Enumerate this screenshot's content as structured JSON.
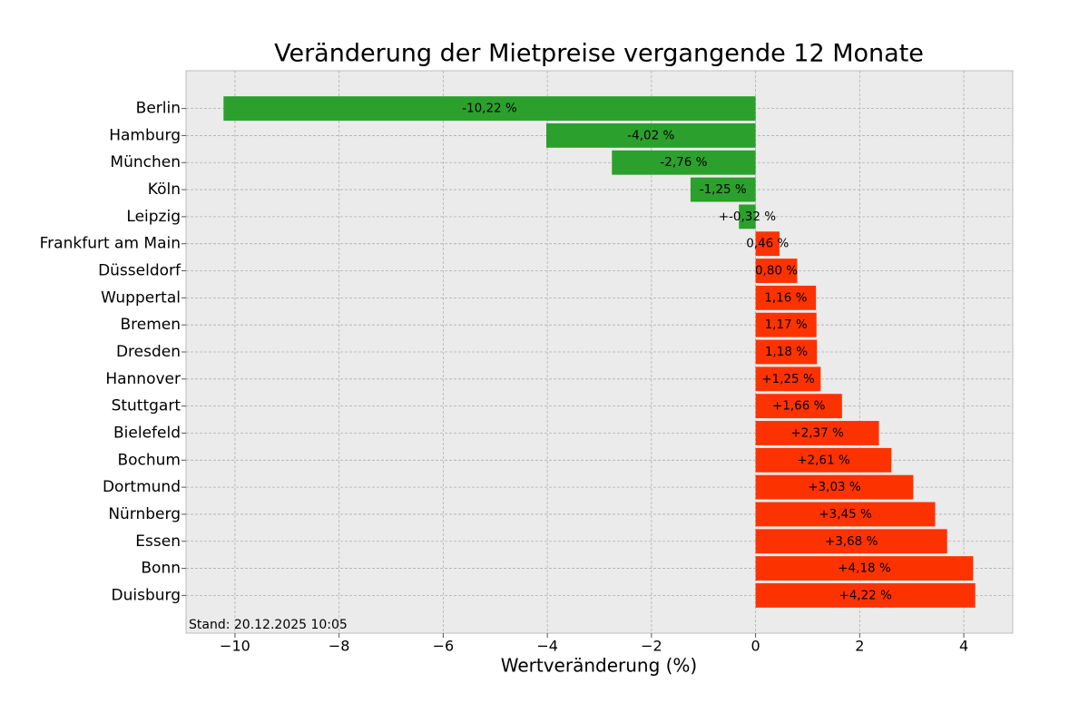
{
  "chart_data": {
    "type": "barh",
    "title": "Veränderung der Mietpreise vergangende 12 Monate",
    "xlabel": "Wertveränderung (%)",
    "annotation": "Stand: 20.12.2025 10:05",
    "categories": [
      "Berlin",
      "Hamburg",
      "München",
      "Köln",
      "Leipzig",
      "Frankfurt am Main",
      "Düsseldorf",
      "Wuppertal",
      "Bremen",
      "Dresden",
      "Hannover",
      "Stuttgart",
      "Bielefeld",
      "Bochum",
      "Dortmund",
      "Nürnberg",
      "Essen",
      "Bonn",
      "Duisburg"
    ],
    "values": [
      -10.22,
      -4.02,
      -2.76,
      -1.25,
      -0.32,
      0.46,
      0.8,
      1.16,
      1.17,
      1.18,
      1.25,
      1.66,
      2.37,
      2.61,
      3.03,
      3.45,
      3.68,
      4.18,
      4.22
    ],
    "value_labels": [
      "-10,22 %",
      "-4,02 %",
      "-2,76 %",
      "-1,25 %",
      "+-0,32 %",
      "0,46 %",
      "0,80 %",
      "1,16 %",
      "1,17 %",
      "1,18 %",
      "+1,25 %",
      "+1,66 %",
      "+2,37 %",
      "+2,61 %",
      "+3,03 %",
      "+3,45 %",
      "+3,68 %",
      "+4,18 %",
      "+4,22 %"
    ],
    "negative_color": "#2ca02c",
    "positive_color": "#fc3300",
    "xlim": [
      -10.94,
      4.94
    ],
    "xticks": [
      {
        "value": -10,
        "label": "−10"
      },
      {
        "value": -8,
        "label": "−8"
      },
      {
        "value": -6,
        "label": "−6"
      },
      {
        "value": -4,
        "label": "−4"
      },
      {
        "value": -2,
        "label": "−2"
      },
      0,
      2,
      4
    ],
    "grid": true
  }
}
